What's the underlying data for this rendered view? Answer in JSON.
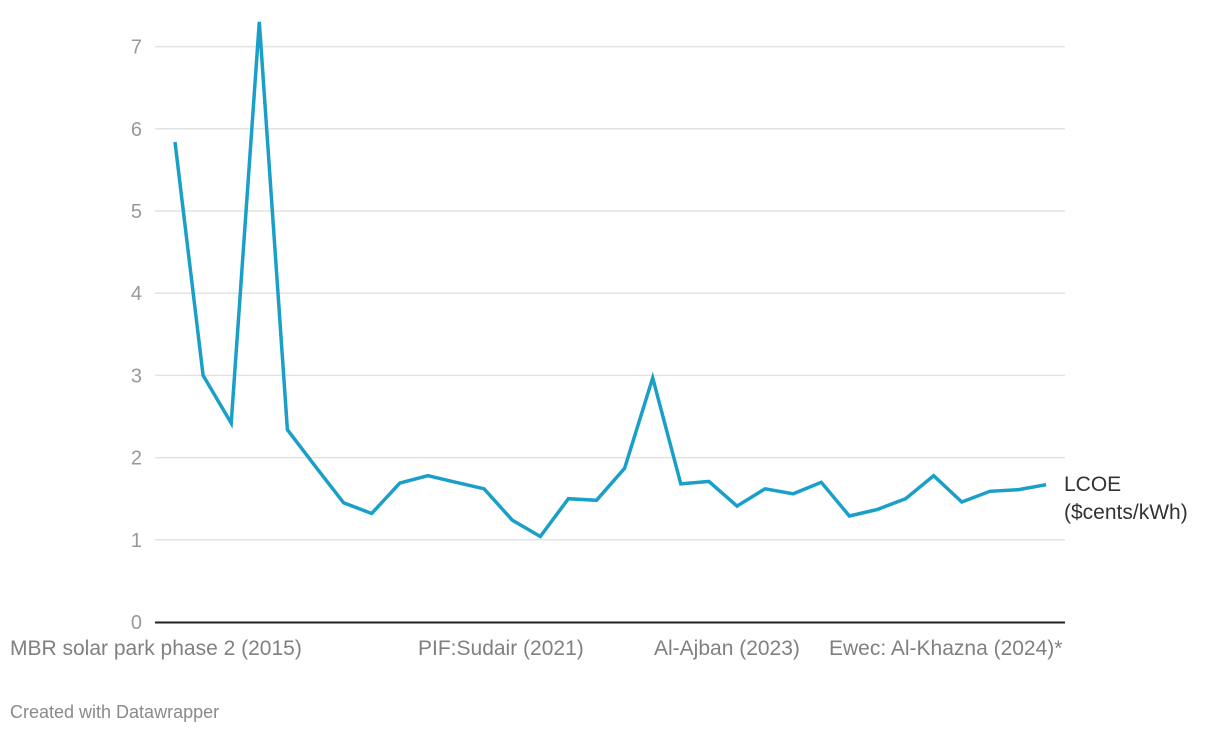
{
  "chart_data": {
    "type": "line",
    "title": "",
    "xlabel": "",
    "ylabel": "",
    "ylim": [
      0,
      7.4
    ],
    "y_ticks": [
      0,
      1,
      2,
      3,
      4,
      5,
      6,
      7
    ],
    "grid": true,
    "x_tick_labels": [
      {
        "index": 0,
        "label": "MBR solar park phase 2 (2015)"
      },
      {
        "index": 9,
        "label": "PIF:Sudair (2021)"
      },
      {
        "index": 17,
        "label": "Al-Ajban (2023)"
      },
      {
        "index": 22,
        "label": "Ewec: Al-Khazna (2024)*"
      }
    ],
    "series": [
      {
        "name": "LCOE\n($cents/kWh)",
        "color": "#1a9fc9",
        "values": [
          5.84,
          3.0,
          2.42,
          7.3,
          2.34,
          1.89,
          1.45,
          1.32,
          1.69,
          1.78,
          1.7,
          1.62,
          1.24,
          1.04,
          1.5,
          1.48,
          1.87,
          2.97,
          1.68,
          1.71,
          1.41,
          1.62,
          1.56,
          1.7,
          1.29,
          1.37,
          1.5,
          1.78,
          1.46,
          1.59,
          1.61,
          1.67
        ]
      }
    ]
  },
  "footer": {
    "credit": "Created with Datawrapper"
  }
}
